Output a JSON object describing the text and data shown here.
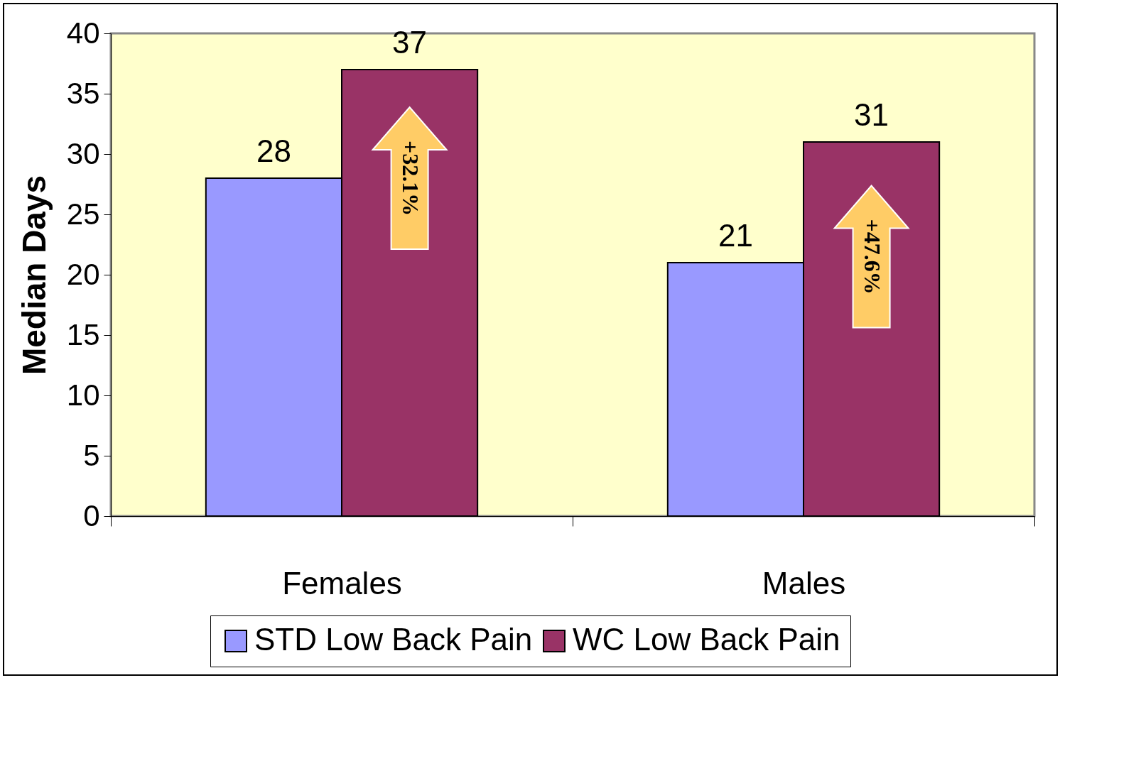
{
  "chart_data": {
    "type": "bar",
    "ylabel": "Median Days",
    "categories": [
      "Females",
      "Males"
    ],
    "series": [
      {
        "name": "STD Low Back Pain",
        "color": "#9999ff",
        "values": [
          28,
          21
        ]
      },
      {
        "name": "WC Low Back Pain",
        "color": "#993366",
        "values": [
          37,
          31
        ]
      }
    ],
    "ylim": [
      0,
      40
    ],
    "yticks": [
      0,
      5,
      10,
      15,
      20,
      25,
      30,
      35,
      40
    ],
    "data_labels": true,
    "legend": "bottom",
    "annotations": [
      {
        "text": "+32.1%",
        "x": "Females",
        "y": 28
      },
      {
        "text": "+47.6%",
        "x": "Males",
        "y": 21.5
      }
    ]
  }
}
